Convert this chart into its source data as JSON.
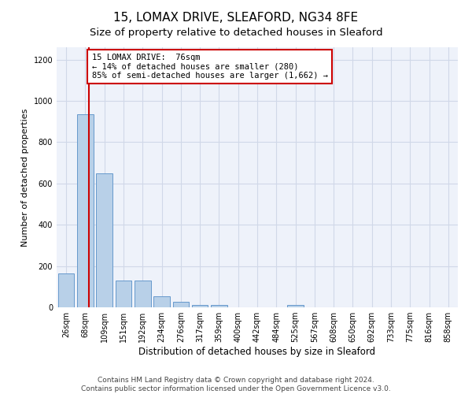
{
  "title_line1": "15, LOMAX DRIVE, SLEAFORD, NG34 8FE",
  "title_line2": "Size of property relative to detached houses in Sleaford",
  "xlabel": "Distribution of detached houses by size in Sleaford",
  "ylabel": "Number of detached properties",
  "categories": [
    "26sqm",
    "68sqm",
    "109sqm",
    "151sqm",
    "192sqm",
    "234sqm",
    "276sqm",
    "317sqm",
    "359sqm",
    "400sqm",
    "442sqm",
    "484sqm",
    "525sqm",
    "567sqm",
    "608sqm",
    "650sqm",
    "692sqm",
    "733sqm",
    "775sqm",
    "816sqm",
    "858sqm"
  ],
  "values": [
    165,
    935,
    650,
    130,
    130,
    55,
    28,
    12,
    12,
    0,
    0,
    0,
    12,
    0,
    0,
    0,
    0,
    0,
    0,
    0,
    0
  ],
  "bar_color": "#b8d0e8",
  "bar_edge_color": "#6699cc",
  "annotation_box_text": "15 LOMAX DRIVE:  76sqm\n← 14% of detached houses are smaller (280)\n85% of semi-detached houses are larger (1,662) →",
  "annotation_box_color": "#ffffff",
  "annotation_box_edge_color": "#cc0000",
  "vline_color": "#cc0000",
  "vline_x_index": 1.19,
  "ylim": [
    0,
    1260
  ],
  "yticks": [
    0,
    200,
    400,
    600,
    800,
    1000,
    1200
  ],
  "grid_color": "#d0d8e8",
  "background_color": "#eef2fa",
  "footer_line1": "Contains HM Land Registry data © Crown copyright and database right 2024.",
  "footer_line2": "Contains public sector information licensed under the Open Government Licence v3.0.",
  "title_fontsize": 11,
  "subtitle_fontsize": 9.5,
  "xlabel_fontsize": 8.5,
  "ylabel_fontsize": 8,
  "tick_fontsize": 7,
  "annotation_fontsize": 7.5,
  "footer_fontsize": 6.5
}
